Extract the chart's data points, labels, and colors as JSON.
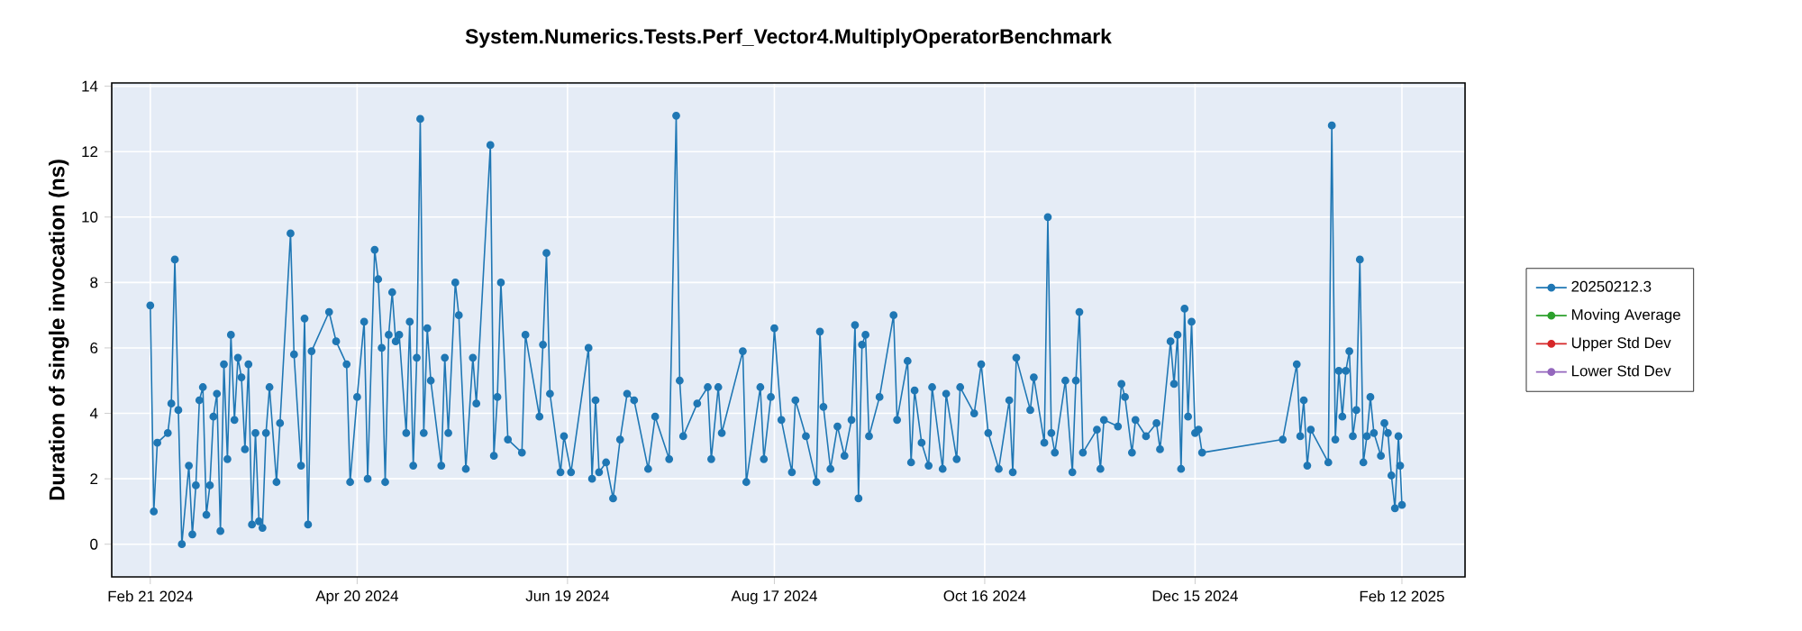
{
  "chart_data": {
    "type": "line",
    "title": "System.Numerics.Tests.Perf_Vector4.MultiplyOperatorBenchmark",
    "ylabel": "Duration of single invocation (ns)",
    "xlim": [
      "2024-02-10",
      "2025-03-02"
    ],
    "ylim": [
      -1,
      14.1
    ],
    "xticks": [
      {
        "value": "2024-02-21",
        "label": "Feb 21 2024"
      },
      {
        "value": "2024-04-20",
        "label": "Apr 20 2024"
      },
      {
        "value": "2024-06-19",
        "label": "Jun 19 2024"
      },
      {
        "value": "2024-08-17",
        "label": "Aug 17 2024"
      },
      {
        "value": "2024-10-16",
        "label": "Oct 16 2024"
      },
      {
        "value": "2024-12-15",
        "label": "Dec 15 2024"
      },
      {
        "value": "2025-02-12",
        "label": "Feb 12 2025"
      }
    ],
    "yticks": [
      0,
      2,
      4,
      6,
      8,
      10,
      12,
      14
    ],
    "grid": true,
    "legend": "right",
    "marker": "circle",
    "line_style": "solid",
    "series": [
      {
        "name": "20250212.3",
        "color": "#1f77b4",
        "x": [
          "2024-02-21",
          "2024-02-22",
          "2024-02-23",
          "2024-02-26",
          "2024-02-27",
          "2024-02-28",
          "2024-02-29",
          "2024-03-01",
          "2024-03-03",
          "2024-03-04",
          "2024-03-05",
          "2024-03-06",
          "2024-03-07",
          "2024-03-08",
          "2024-03-09",
          "2024-03-10",
          "2024-03-11",
          "2024-03-12",
          "2024-03-13",
          "2024-03-14",
          "2024-03-15",
          "2024-03-16",
          "2024-03-17",
          "2024-03-18",
          "2024-03-19",
          "2024-03-20",
          "2024-03-21",
          "2024-03-22",
          "2024-03-23",
          "2024-03-24",
          "2024-03-25",
          "2024-03-26",
          "2024-03-28",
          "2024-03-29",
          "2024-04-01",
          "2024-04-02",
          "2024-04-04",
          "2024-04-05",
          "2024-04-06",
          "2024-04-07",
          "2024-04-12",
          "2024-04-14",
          "2024-04-17",
          "2024-04-18",
          "2024-04-20",
          "2024-04-22",
          "2024-04-23",
          "2024-04-25",
          "2024-04-26",
          "2024-04-27",
          "2024-04-28",
          "2024-04-29",
          "2024-04-30",
          "2024-05-01",
          "2024-05-02",
          "2024-05-04",
          "2024-05-05",
          "2024-05-06",
          "2024-05-07",
          "2024-05-08",
          "2024-05-09",
          "2024-05-10",
          "2024-05-11",
          "2024-05-14",
          "2024-05-15",
          "2024-05-16",
          "2024-05-18",
          "2024-05-19",
          "2024-05-21",
          "2024-05-23",
          "2024-05-24",
          "2024-05-28",
          "2024-05-29",
          "2024-05-30",
          "2024-05-31",
          "2024-06-02",
          "2024-06-06",
          "2024-06-07",
          "2024-06-11",
          "2024-06-12",
          "2024-06-13",
          "2024-06-14",
          "2024-06-17",
          "2024-06-18",
          "2024-06-20",
          "2024-06-25",
          "2024-06-26",
          "2024-06-27",
          "2024-06-28",
          "2024-06-30",
          "2024-07-02",
          "2024-07-04",
          "2024-07-06",
          "2024-07-08",
          "2024-07-12",
          "2024-07-14",
          "2024-07-18",
          "2024-07-20",
          "2024-07-21",
          "2024-07-22",
          "2024-07-26",
          "2024-07-29",
          "2024-07-30",
          "2024-08-01",
          "2024-08-02",
          "2024-08-08",
          "2024-08-09",
          "2024-08-13",
          "2024-08-14",
          "2024-08-16",
          "2024-08-17",
          "2024-08-19",
          "2024-08-22",
          "2024-08-23",
          "2024-08-26",
          "2024-08-29",
          "2024-08-30",
          "2024-08-31",
          "2024-09-02",
          "2024-09-04",
          "2024-09-06",
          "2024-09-08",
          "2024-09-09",
          "2024-09-10",
          "2024-09-11",
          "2024-09-12",
          "2024-09-13",
          "2024-09-16",
          "2024-09-20",
          "2024-09-21",
          "2024-09-24",
          "2024-09-25",
          "2024-09-26",
          "2024-09-28",
          "2024-09-30",
          "2024-10-01",
          "2024-10-04",
          "2024-10-05",
          "2024-10-08",
          "2024-10-09",
          "2024-10-13",
          "2024-10-15",
          "2024-10-17",
          "2024-10-20",
          "2024-10-23",
          "2024-10-24",
          "2024-10-25",
          "2024-10-29",
          "2024-10-30",
          "2024-11-02",
          "2024-11-03",
          "2024-11-04",
          "2024-11-05",
          "2024-11-08",
          "2024-11-10",
          "2024-11-11",
          "2024-11-12",
          "2024-11-13",
          "2024-11-17",
          "2024-11-18",
          "2024-11-19",
          "2024-11-23",
          "2024-11-24",
          "2024-11-25",
          "2024-11-27",
          "2024-11-28",
          "2024-12-01",
          "2024-12-04",
          "2024-12-05",
          "2024-12-08",
          "2024-12-09",
          "2024-12-10",
          "2024-12-11",
          "2024-12-12",
          "2024-12-13",
          "2024-12-14",
          "2024-12-15",
          "2024-12-16",
          "2024-12-17",
          "2025-01-09",
          "2025-01-13",
          "2025-01-14",
          "2025-01-15",
          "2025-01-16",
          "2025-01-17",
          "2025-01-22",
          "2025-01-23",
          "2025-01-24",
          "2025-01-25",
          "2025-01-26",
          "2025-01-27",
          "2025-01-28",
          "2025-01-29",
          "2025-01-30",
          "2025-01-31",
          "2025-02-01",
          "2025-02-02",
          "2025-02-03",
          "2025-02-04",
          "2025-02-06",
          "2025-02-07",
          "2025-02-08",
          "2025-02-09",
          "2025-02-10",
          "2025-02-11",
          "2025-02-11T12:00",
          "2025-02-12"
        ],
        "values": [
          7.3,
          1.0,
          3.1,
          3.4,
          4.3,
          8.7,
          4.1,
          0.0,
          2.4,
          0.3,
          1.8,
          4.4,
          4.8,
          0.9,
          1.8,
          3.9,
          4.6,
          0.4,
          5.5,
          2.6,
          6.4,
          3.8,
          5.7,
          5.1,
          2.9,
          5.5,
          0.6,
          3.4,
          0.7,
          0.5,
          3.4,
          4.8,
          1.9,
          3.7,
          9.5,
          5.8,
          2.4,
          6.9,
          0.6,
          5.9,
          7.1,
          6.2,
          5.5,
          1.9,
          4.5,
          6.8,
          2.0,
          9.0,
          8.1,
          6.0,
          1.9,
          6.4,
          7.7,
          6.2,
          6.4,
          3.4,
          6.8,
          2.4,
          5.7,
          13.0,
          3.4,
          6.6,
          5.0,
          2.4,
          5.7,
          3.4,
          8.0,
          7.0,
          2.3,
          5.7,
          4.3,
          12.2,
          2.7,
          4.5,
          8.0,
          3.2,
          2.8,
          6.4,
          3.9,
          6.1,
          8.9,
          4.6,
          2.2,
          3.3,
          2.2,
          6.0,
          2.0,
          4.4,
          2.2,
          2.5,
          1.4,
          3.2,
          4.6,
          4.4,
          2.3,
          3.9,
          2.6,
          13.1,
          5.0,
          3.3,
          4.3,
          4.8,
          2.6,
          4.8,
          3.4,
          5.9,
          1.9,
          4.8,
          2.6,
          4.5,
          6.6,
          3.8,
          2.2,
          4.4,
          3.3,
          1.9,
          6.5,
          4.2,
          2.3,
          3.6,
          2.7,
          3.8,
          6.7,
          1.4,
          6.1,
          6.4,
          3.3,
          4.5,
          7.0,
          3.8,
          5.6,
          2.5,
          4.7,
          3.1,
          2.4,
          4.8,
          2.3,
          4.6,
          2.6,
          4.8,
          4.0,
          5.5,
          3.4,
          2.3,
          4.4,
          2.2,
          5.7,
          4.1,
          5.1,
          3.1,
          10.0,
          3.4,
          2.8,
          5.0,
          2.2,
          5.0,
          7.1,
          2.8,
          3.5,
          2.3,
          3.8,
          3.6,
          4.9,
          4.5,
          2.8,
          3.8,
          3.3,
          3.7,
          2.9,
          6.2,
          4.9,
          6.4,
          2.3,
          7.2,
          3.9,
          6.8,
          3.4,
          3.5,
          2.8,
          3.2,
          5.5,
          3.3,
          4.4,
          2.4,
          3.5,
          2.5,
          12.8,
          3.2,
          5.3,
          3.9,
          5.3,
          5.9,
          3.3,
          4.1,
          8.7,
          2.5,
          3.3,
          4.5,
          3.4,
          2.7,
          3.7,
          3.4,
          2.1,
          1.1,
          3.3,
          2.4,
          1.2
        ]
      },
      {
        "name": "Moving Average",
        "color": "#2ca02c"
      },
      {
        "name": "Upper Std Dev",
        "color": "#d62728"
      },
      {
        "name": "Lower Std Dev",
        "color": "#9467bd"
      }
    ]
  }
}
